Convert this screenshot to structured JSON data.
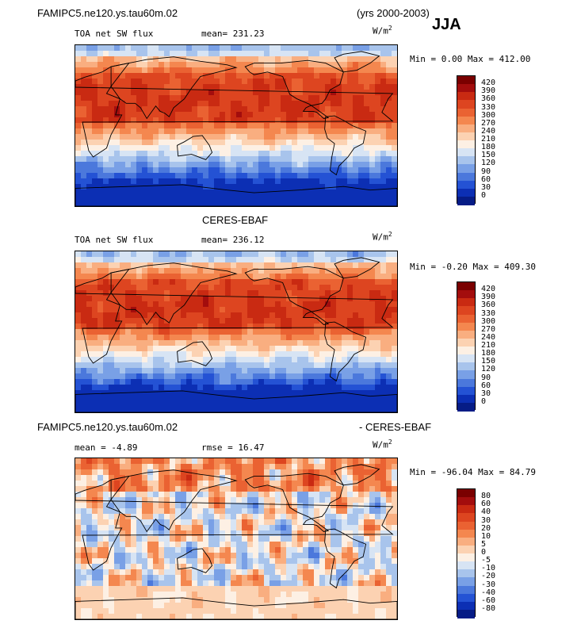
{
  "header": {
    "case_name": "FAMIPC5.ne120.ys.tau60m.02",
    "years": "(yrs 2000-2003)",
    "season": "JJA"
  },
  "panels": [
    {
      "id": "model",
      "title": "",
      "variable": "TOA net SW flux",
      "stats_left": "mean= 231.23",
      "stats_right": "",
      "units": "W/m",
      "units_sup": "2",
      "minmax": "Min =   0.00 Max = 412.00",
      "pattern": "flux"
    },
    {
      "id": "obs",
      "title": "CERES-EBAF",
      "variable": "TOA net SW flux",
      "stats_left": "mean= 236.12",
      "stats_right": "",
      "units": "W/m",
      "units_sup": "2",
      "minmax": "Min =  -0.20 Max = 409.30",
      "pattern": "flux"
    },
    {
      "id": "diff",
      "title_left": "FAMIPC5.ne120.ys.tau60m.02",
      "title_right": "- CERES-EBAF",
      "variable": "",
      "stats_left": "mean =  -4.89",
      "stats_right": "rmse =  16.47",
      "units": "W/m",
      "units_sup": "2",
      "minmax": "Min = -96.04 Max =  84.79",
      "pattern": "diff"
    }
  ],
  "chart_data": [
    {
      "type": "heatmap",
      "title": "TOA net SW flux",
      "subtitle": "FAMIPC5.ne120.ys.tau60m.02 (yrs 2000-2003) JJA",
      "mean": 231.23,
      "min": 0.0,
      "max": 412.0,
      "units": "W/m2",
      "colorbar_levels": [
        420,
        390,
        360,
        330,
        300,
        270,
        240,
        210,
        180,
        150,
        120,
        90,
        60,
        30,
        0
      ],
      "colors": [
        "#7a0000",
        "#a30d0d",
        "#c92a12",
        "#dd4520",
        "#ea6232",
        "#f4874f",
        "#f9ae80",
        "#fcd2b2",
        "#fdf0e4",
        "#d7e4f4",
        "#a8c4ec",
        "#79a0e6",
        "#4b78dc",
        "#2452d4",
        "#0c2fb4",
        "#061c86"
      ]
    },
    {
      "type": "heatmap",
      "title": "CERES-EBAF",
      "subtitle": "TOA net SW flux",
      "mean": 236.12,
      "min": -0.2,
      "max": 409.3,
      "units": "W/m2",
      "colorbar_levels": [
        420,
        390,
        360,
        330,
        300,
        270,
        240,
        210,
        180,
        150,
        120,
        90,
        60,
        30,
        0
      ],
      "colors": [
        "#7a0000",
        "#a30d0d",
        "#c92a12",
        "#dd4520",
        "#ea6232",
        "#f4874f",
        "#f9ae80",
        "#fcd2b2",
        "#fdf0e4",
        "#d7e4f4",
        "#a8c4ec",
        "#79a0e6",
        "#4b78dc",
        "#2452d4",
        "#0c2fb4",
        "#061c86"
      ]
    },
    {
      "type": "heatmap",
      "title": "FAMIPC5.ne120.ys.tau60m.02 - CERES-EBAF",
      "mean": -4.89,
      "rmse": 16.47,
      "min": -96.04,
      "max": 84.79,
      "units": "W/m2",
      "colorbar_levels": [
        80,
        60,
        40,
        30,
        20,
        10,
        5,
        0,
        -5,
        -10,
        -20,
        -30,
        -40,
        -60,
        -80
      ],
      "colors": [
        "#7a0000",
        "#a30d0d",
        "#c92a12",
        "#dd4520",
        "#ea6232",
        "#f4874f",
        "#f9ae80",
        "#fcd2b2",
        "#fdf0e4",
        "#d7e4f4",
        "#a8c4ec",
        "#79a0e6",
        "#4b78dc",
        "#2452d4",
        "#0c2fb4",
        "#061c86"
      ]
    }
  ]
}
